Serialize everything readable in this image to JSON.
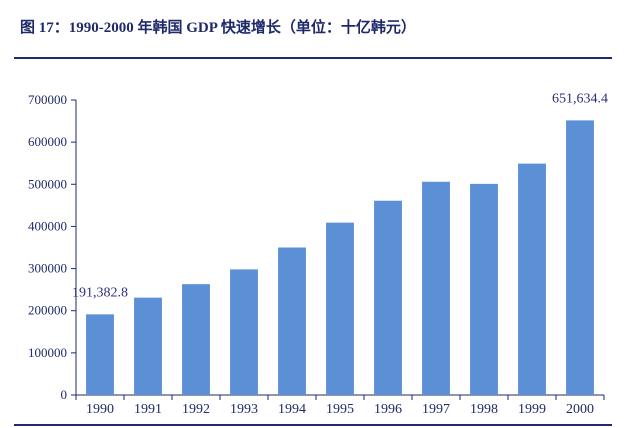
{
  "header": {
    "title": "图 17：1990-2000 年韩国 GDP 快速增长（单位：十亿韩元）"
  },
  "colors": {
    "bar": "#5b8fd6",
    "axis": "#1f2a6b",
    "text": "#1f2a6b"
  },
  "chart_data": {
    "type": "bar",
    "title": "图 17：1990-2000 年韩国 GDP 快速增长（单位：十亿韩元）",
    "xlabel": "",
    "ylabel": "",
    "categories": [
      "1990",
      "1991",
      "1992",
      "1993",
      "1994",
      "1995",
      "1996",
      "1997",
      "1998",
      "1999",
      "2000"
    ],
    "values": [
      191382.8,
      231000,
      263000,
      298000,
      350000,
      409000,
      461000,
      506000,
      501000,
      549000,
      651634.4
    ],
    "data_labels": [
      {
        "index": 0,
        "text": "191,382.8"
      },
      {
        "index": 10,
        "text": "651,634.4"
      }
    ],
    "ylim": [
      0,
      700000
    ],
    "yticks": [
      "0",
      "100000",
      "200000",
      "300000",
      "400000",
      "500000",
      "600000",
      "700000"
    ],
    "grid": false,
    "legend": "none"
  }
}
